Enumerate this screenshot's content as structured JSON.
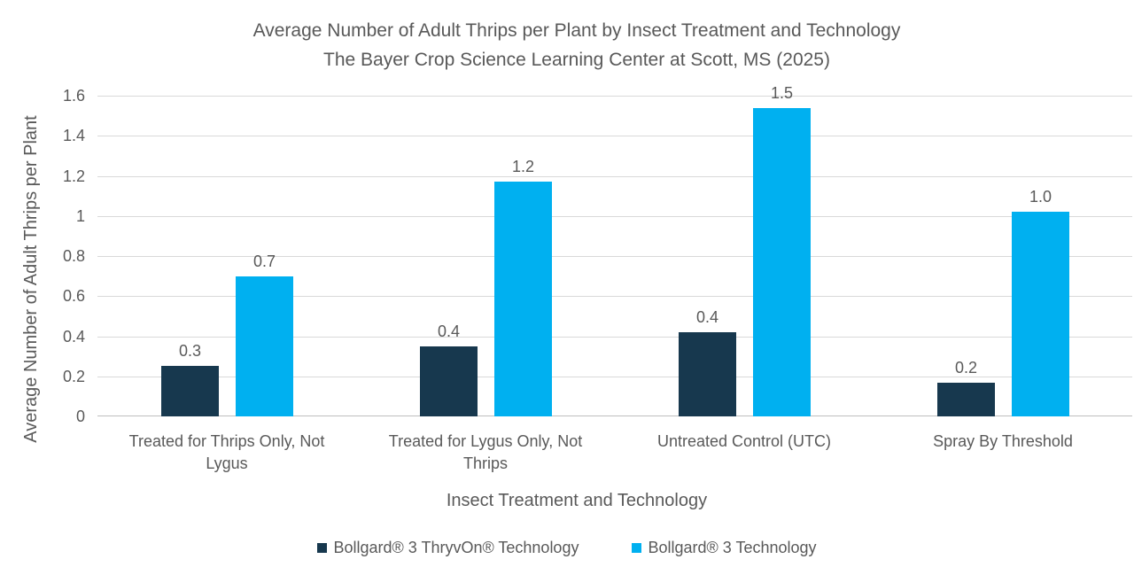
{
  "chart_data": {
    "type": "bar",
    "title_line1": "Average Number of Adult Thrips per Plant by Insect Treatment and Technology",
    "title_line2": "The Bayer Crop Science Learning Center at Scott, MS (2025)",
    "xlabel": "Insect Treatment and Technology",
    "ylabel": "Average Number of Adult Thrips per Plant",
    "categories": [
      "Treated for Thrips Only, Not Lygus",
      "Treated for Lygus Only, Not Thrips",
      "Untreated Control (UTC)",
      "Spray By Threshold"
    ],
    "series": [
      {
        "name": "Bollgard® 3 ThryvOn® Technology",
        "color": "#17384e",
        "values": [
          0.25,
          0.35,
          0.42,
          0.17
        ],
        "labels": [
          "0.3",
          "0.4",
          "0.4",
          "0.2"
        ]
      },
      {
        "name": "Bollgard® 3 Technology",
        "color": "#00b0f0",
        "values": [
          0.7,
          1.17,
          1.54,
          1.02
        ],
        "labels": [
          "0.7",
          "1.2",
          "1.5",
          "1.0"
        ]
      }
    ],
    "y_ticks": [
      "1.6",
      "1.4",
      "1.2",
      "1",
      "0.8",
      "0.6",
      "0.4",
      "0.2",
      "0"
    ],
    "ylim": [
      0,
      1.6
    ],
    "grid": true,
    "legend_position": "bottom",
    "colors": {
      "text": "#595959",
      "gridline": "#d9d9d9",
      "axis_line": "#bfbfbf",
      "background": "#ffffff"
    }
  }
}
